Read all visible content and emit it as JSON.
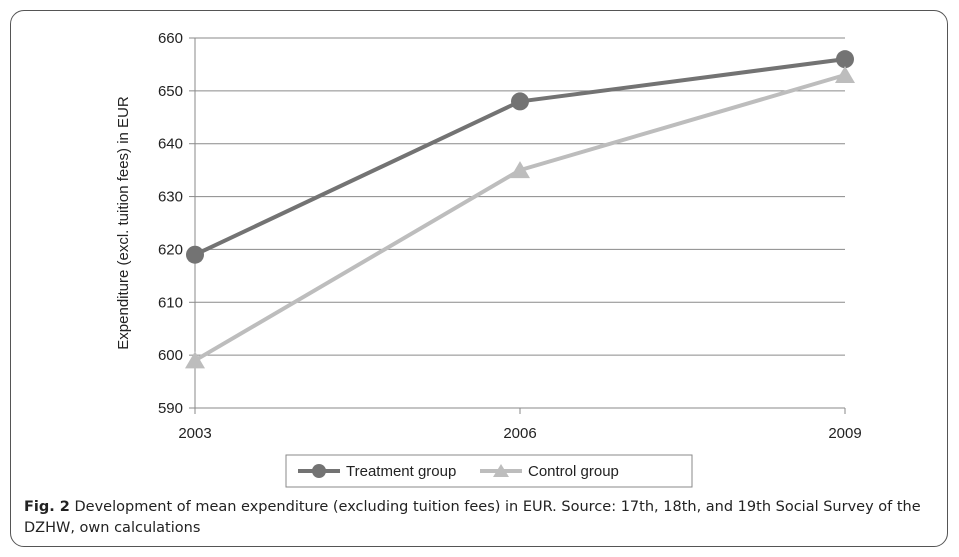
{
  "chart_data": {
    "type": "line",
    "x": [
      "2003",
      "2006",
      "2009"
    ],
    "series": [
      {
        "name": "Treatment group",
        "values": [
          619,
          648,
          656
        ],
        "color": "#737373",
        "marker": "circle"
      },
      {
        "name": "Control group",
        "values": [
          599,
          635,
          653
        ],
        "color": "#bdbdbd",
        "marker": "triangle"
      }
    ],
    "ylabel": "Expenditure (excl. tuition fees) in EUR",
    "xlabel": "",
    "ylim": [
      590,
      660
    ],
    "yticks": [
      590,
      600,
      610,
      620,
      630,
      640,
      650,
      660
    ],
    "grid": "horizontal",
    "legend_position": "bottom"
  },
  "caption": {
    "label": "Fig. 2",
    "text": "Development of mean expenditure (excluding tuition fees) in EUR. Source: 17th, 18th, and 19th Social Survey of the DZHW, own calculations"
  }
}
